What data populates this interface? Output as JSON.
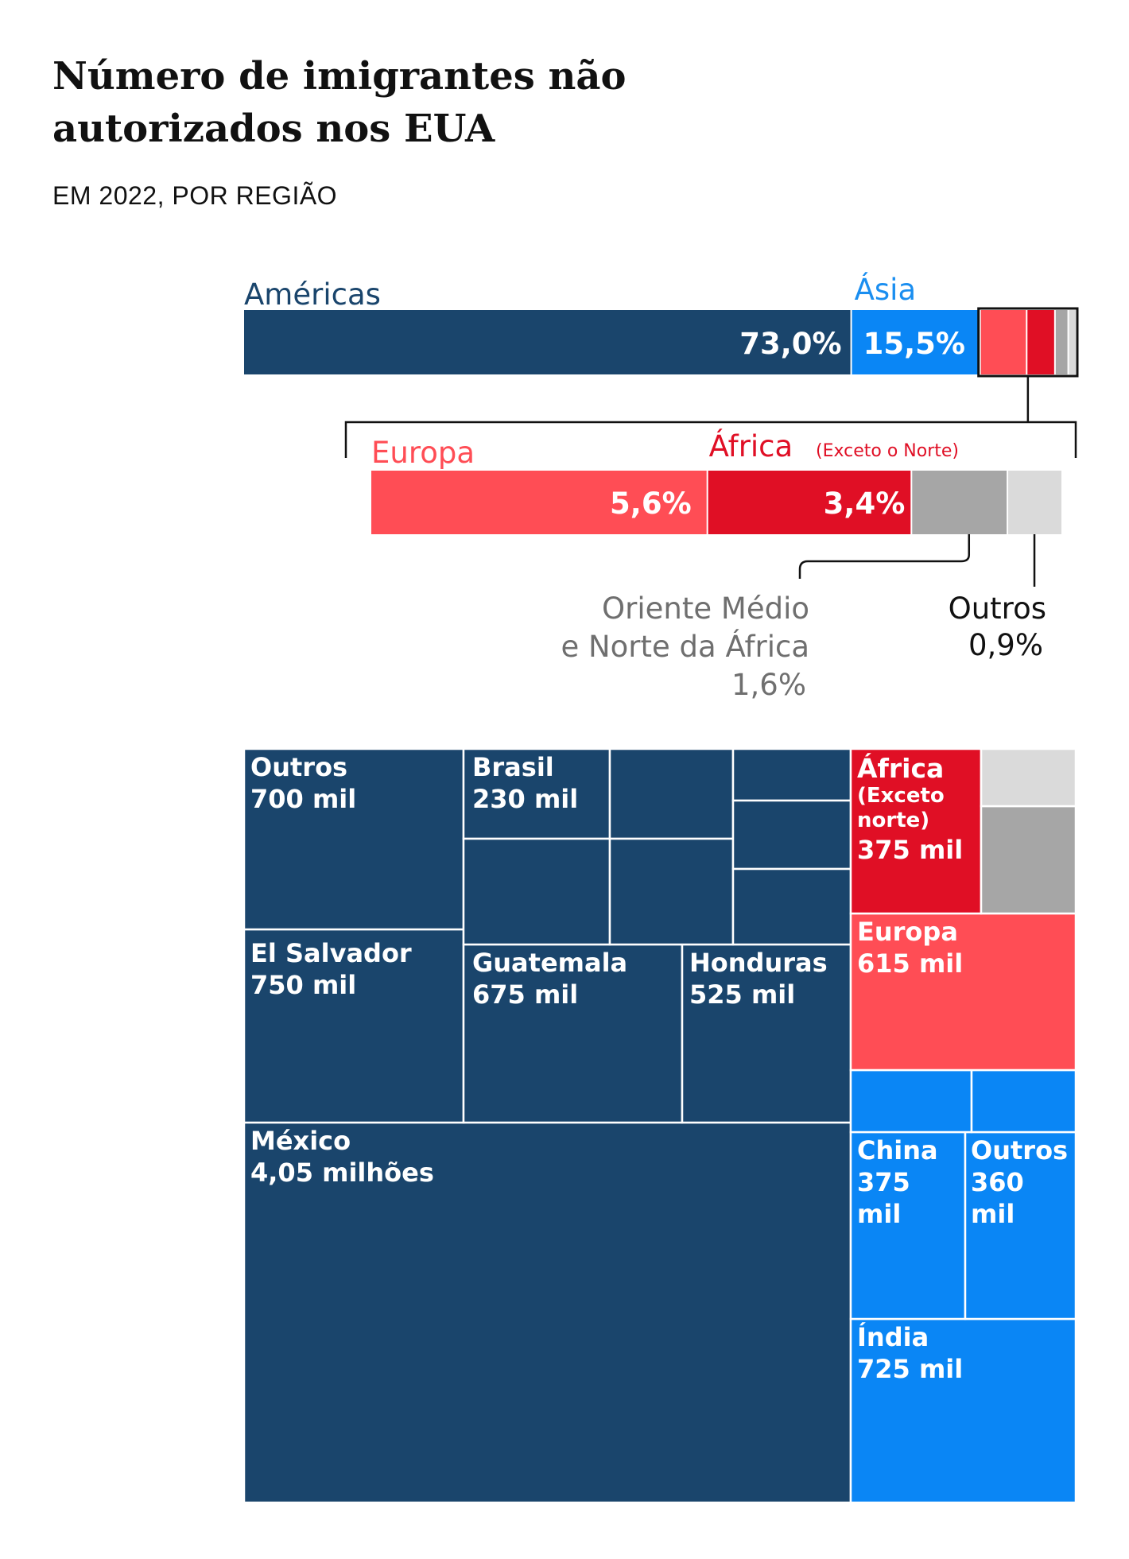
{
  "title_line1": "Número de imigrantes não",
  "title_line2": "autorizados nos EUA",
  "subtitle": "EM 2022, POR REGIÃO",
  "colors": {
    "americas": "#1a456c",
    "asia": "#0a86f5",
    "europa": "#ff4d55",
    "africa": "#e00f25",
    "mena": "#a6a6a6",
    "outros": "#dadada",
    "americas_label": "#1a456c",
    "asia_label": "#1a8ef0",
    "europa_label": "#ff4d55",
    "africa_label": "#e00f25",
    "mena_label": "#6f6f6f",
    "outros_label": "#111111"
  },
  "chart_data": [
    {
      "type": "bar",
      "subtype": "stacked-100",
      "series": [
        {
          "name": "Américas",
          "key": "americas",
          "value": 73.0,
          "label": "73,0%"
        },
        {
          "name": "Ásia",
          "key": "asia",
          "value": 15.5,
          "label": "15,5%"
        },
        {
          "name": "Europa",
          "key": "europa",
          "value": 5.6,
          "label": "5,6%"
        },
        {
          "name": "África",
          "note": "(Exceto o Norte)",
          "key": "africa",
          "value": 3.4,
          "label": "3,4%"
        },
        {
          "name_line1": "Oriente Médio",
          "name_line2": "e Norte da África",
          "key": "mena",
          "value": 1.6,
          "label": "1,6%"
        },
        {
          "name": "Outros",
          "key": "outros",
          "value": 0.9,
          "label": "0,9%"
        }
      ]
    },
    {
      "type": "treemap",
      "cells": [
        {
          "group": "americas",
          "name": "México",
          "value_label": "4,05 milhões"
        },
        {
          "group": "americas",
          "name": "El Salvador",
          "value_label": "750 mil"
        },
        {
          "group": "americas",
          "name": "Outros",
          "value_label": "700 mil"
        },
        {
          "group": "americas",
          "name": "Guatemala",
          "value_label": "675 mil"
        },
        {
          "group": "americas",
          "name": "Honduras",
          "value_label": "525 mil"
        },
        {
          "group": "americas",
          "name": "Brasil",
          "value_label": "230 mil"
        },
        {
          "group": "americas",
          "name": "",
          "value_label": ""
        },
        {
          "group": "americas",
          "name": "",
          "value_label": ""
        },
        {
          "group": "americas",
          "name": "",
          "value_label": ""
        },
        {
          "group": "americas",
          "name": "",
          "value_label": ""
        },
        {
          "group": "americas",
          "name": "",
          "value_label": ""
        },
        {
          "group": "americas",
          "name": "",
          "value_label": ""
        },
        {
          "group": "americas",
          "name": "",
          "value_label": ""
        },
        {
          "group": "asia",
          "name": "Índia",
          "value_label": "725 mil"
        },
        {
          "group": "asia",
          "name": "China",
          "value_label": "375 mil"
        },
        {
          "group": "asia",
          "name": "Outros",
          "value_label": "360 mil"
        },
        {
          "group": "asia",
          "name": "",
          "value_label": ""
        },
        {
          "group": "asia",
          "name": "",
          "value_label": ""
        },
        {
          "group": "europa",
          "name": "Europa",
          "value_label": "615 mil"
        },
        {
          "group": "africa",
          "name": "África",
          "name_line2": "(Exceto",
          "name_line3": "norte)",
          "value_label": "375 mil"
        },
        {
          "group": "mena",
          "name": "",
          "value_label": ""
        },
        {
          "group": "outros",
          "name": "",
          "value_label": ""
        }
      ]
    }
  ]
}
